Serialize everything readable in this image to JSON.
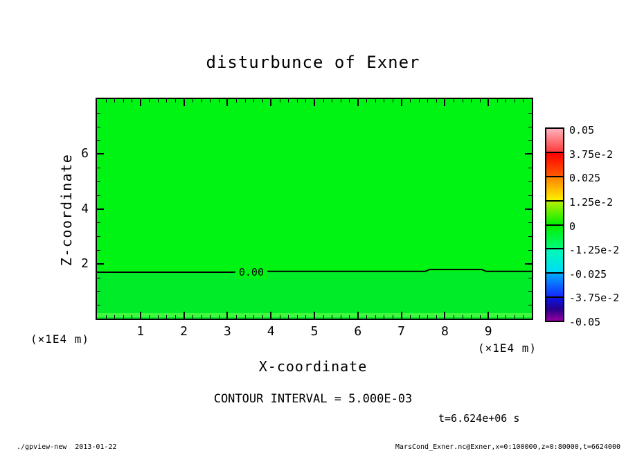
{
  "title": "disturbunce of Exner",
  "colors": {
    "background": "#FFFFFF",
    "frame": "#000000",
    "fill_above_contour": "#00F413",
    "fill_below_contour": "#00EC28",
    "bottom_stripe": "#40F840"
  },
  "axes": {
    "x": {
      "title": "X-coordinate",
      "unit_left": "(×1E4 m)",
      "unit_right": "(×1E4 m)"
    },
    "y": {
      "title": "Z-coordinate"
    }
  },
  "contour": {
    "label": "0.00",
    "interval_text": "CONTOUR INTERVAL = 5.000E-03"
  },
  "time_label": "t=6.624e+06 s",
  "colorbar": {
    "labels": [
      "0.05",
      "3.75e-2",
      "0.025",
      "1.25e-2",
      "0",
      "-1.25e-2",
      "-0.025",
      "-3.75e-2",
      "-0.05"
    ],
    "segments": [
      {
        "from": "#FFB0BC",
        "to": "#FF3C3C"
      },
      {
        "from": "#FF0000",
        "to": "#FF5A00"
      },
      {
        "from": "#FF8200",
        "to": "#FFF000"
      },
      {
        "from": "#B4F000",
        "to": "#00F000"
      },
      {
        "from": "#00F000",
        "to": "#00FA78"
      },
      {
        "from": "#00FAB4",
        "to": "#00DCFA"
      },
      {
        "from": "#00AAFF",
        "to": "#1428FF"
      },
      {
        "from": "#0A14E6",
        "mid": "#28008C",
        "to": "#9600A0"
      }
    ]
  },
  "footer": {
    "left": "./gpview-new  2013-01-22",
    "right": "MarsCond_Exner.nc@Exner,x=0:100000,z=0:80000,t=6624000"
  },
  "chart_data": {
    "type": "heatmap",
    "title": "disturbunce of Exner",
    "xlabel": "X-coordinate (×1E4 m)",
    "ylabel": "Z-coordinate (×1E4 m)",
    "xlim": [
      0,
      10
    ],
    "ylim": [
      0,
      8
    ],
    "x_major_ticks": [
      1,
      2,
      3,
      4,
      5,
      6,
      7,
      8,
      9
    ],
    "x_minor_step": 0.2,
    "y_major_ticks": [
      2,
      4,
      6
    ],
    "y_minor_step": 0.5,
    "grid": false,
    "legend_position": "right-colorbar",
    "colorbar_levels": [
      0.05,
      0.0375,
      0.025,
      0.0125,
      0,
      -0.0125,
      -0.025,
      -0.0375,
      -0.05
    ],
    "contour_interval": 0.005,
    "contours": [
      {
        "level": 0.0,
        "polyline": [
          [
            0,
            1.69
          ],
          [
            3.1,
            1.69
          ],
          [
            3.5,
            1.72
          ],
          [
            7.55,
            1.72
          ],
          [
            7.65,
            1.79
          ],
          [
            8.85,
            1.79
          ],
          [
            8.95,
            1.72
          ],
          [
            10,
            1.72
          ]
        ],
        "label": "0.00",
        "label_position": {
          "x": 3.55,
          "z": 1.7
        }
      }
    ],
    "field_summary": "Exner disturbance field is near zero over the whole domain (green ≈ 0 on colorbar); a single 0.00 contour line crosses horizontally at z ≈ 1.7×1E4 m",
    "time": "t=6.624e+06 s"
  }
}
